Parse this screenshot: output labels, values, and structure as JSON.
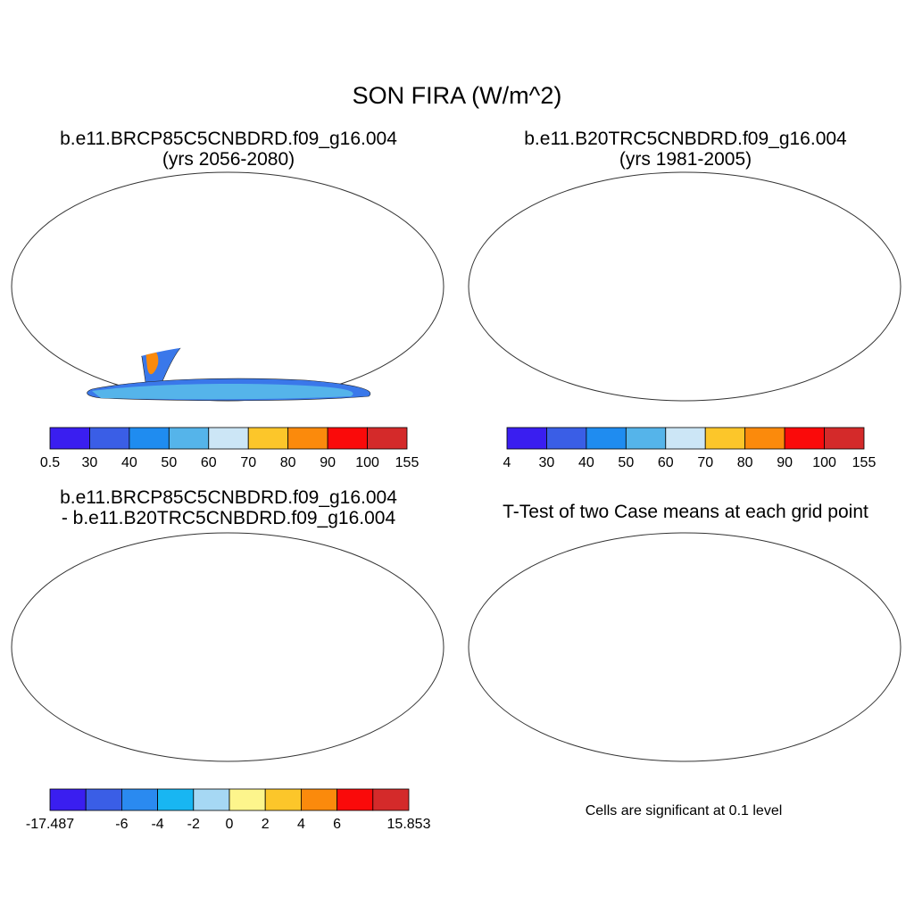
{
  "figure": {
    "title": "SON FIRA (W/m^2)"
  },
  "panels": [
    {
      "id": "case1",
      "title_line1": "b.e11.BRCP85C5CNBDRD.f09_g16.004",
      "title_line2": "(yrs 2056-2080)"
    },
    {
      "id": "case2",
      "title_line1": "b.e11.B20TRC5CNBDRD.f09_g16.004",
      "title_line2": "(yrs 1981-2005)"
    },
    {
      "id": "difference",
      "title_line1": "b.e11.BRCP85C5CNBDRD.f09_g16.004",
      "title_line2": "- b.e11.B20TRC5CNBDRD.f09_g16.004"
    },
    {
      "id": "ttest",
      "title_line1": "T-Test of two Case means at each grid point",
      "note": "Cells are significant at 0.1 level"
    }
  ],
  "colorbars": [
    {
      "labels": [
        "0.5",
        "30",
        "40",
        "50",
        "60",
        "70",
        "80",
        "90",
        "100",
        "155"
      ],
      "colors": [
        "#3a1ef0",
        "#3a5ee6",
        "#1f8cf0",
        "#55b4ea",
        "#cce6f6",
        "#fcc62a",
        "#fb8a0c",
        "#fa0a0a",
        "#d42a2a"
      ]
    },
    {
      "labels": [
        "4",
        "30",
        "40",
        "50",
        "60",
        "70",
        "80",
        "90",
        "100",
        "155"
      ],
      "colors": [
        "#3a1ef0",
        "#3a5ee6",
        "#1f8cf0",
        "#55b4ea",
        "#cce6f6",
        "#fcc62a",
        "#fb8a0c",
        "#fa0a0a",
        "#d42a2a"
      ]
    },
    {
      "labels": [
        "-17.487",
        "",
        "-6",
        "-4",
        "-2",
        "0",
        "2",
        "4",
        "6",
        "",
        "15.853"
      ],
      "colors": [
        "#3a1ef0",
        "#3a5ee6",
        "#2a8af0",
        "#18b6f2",
        "#a6d8f4",
        "#fdf58c",
        "#fcc62a",
        "#fb8a0c",
        "#fa0a0a",
        "#d42a2a"
      ]
    }
  ]
}
